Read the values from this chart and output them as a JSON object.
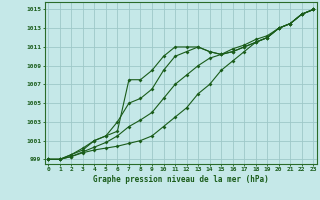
{
  "title": "Graphe pression niveau de la mer (hPa)",
  "bg_color": "#c5e8e8",
  "grid_color": "#9ec8c8",
  "line_color": "#1a5c1a",
  "border_color": "#2a6b2a",
  "hours": [
    0,
    1,
    2,
    3,
    4,
    5,
    6,
    7,
    8,
    9,
    10,
    11,
    12,
    13,
    14,
    15,
    16,
    17,
    18,
    19,
    20,
    21,
    22,
    23
  ],
  "line1": [
    999,
    999,
    999.3,
    999.7,
    1000.0,
    1000.2,
    1000.4,
    1000.7,
    1001.0,
    1001.5,
    1002.5,
    1003.5,
    1004.5,
    1006.0,
    1007.0,
    1008.5,
    1009.5,
    1010.5,
    1011.5,
    1012.0,
    1013.0,
    1013.5,
    1014.5,
    1015.0
  ],
  "line2": [
    999,
    999,
    999.3,
    999.8,
    1000.3,
    1000.8,
    1001.5,
    1002.5,
    1003.2,
    1004.0,
    1005.5,
    1007.0,
    1008.0,
    1009.0,
    1009.8,
    1010.2,
    1010.8,
    1011.2,
    1011.8,
    1012.2,
    1013.0,
    1013.5,
    1014.5,
    1015.0
  ],
  "line3": [
    999,
    999,
    999.5,
    1000.2,
    1001.0,
    1001.5,
    1003.0,
    1005.0,
    1005.5,
    1006.5,
    1008.5,
    1010.0,
    1010.5,
    1011.0,
    1010.5,
    1010.2,
    1010.5,
    1011.0,
    1011.5,
    1012.0,
    1013.0,
    1013.5,
    1014.5,
    1015.0
  ],
  "line4": [
    999,
    999,
    999.5,
    1000.0,
    1001.0,
    1001.5,
    1002.0,
    1007.5,
    1007.5,
    1008.5,
    1010.0,
    1011.0,
    1011.0,
    1011.0,
    1010.5,
    1010.2,
    1010.5,
    1011.0,
    1011.5,
    1012.0,
    1013.0,
    1013.5,
    1014.5,
    1015.0
  ],
  "ylim": [
    998.5,
    1015.8
  ],
  "yticks": [
    999,
    1001,
    1003,
    1005,
    1007,
    1009,
    1011,
    1013,
    1015
  ],
  "xlim": [
    -0.3,
    23.3
  ]
}
